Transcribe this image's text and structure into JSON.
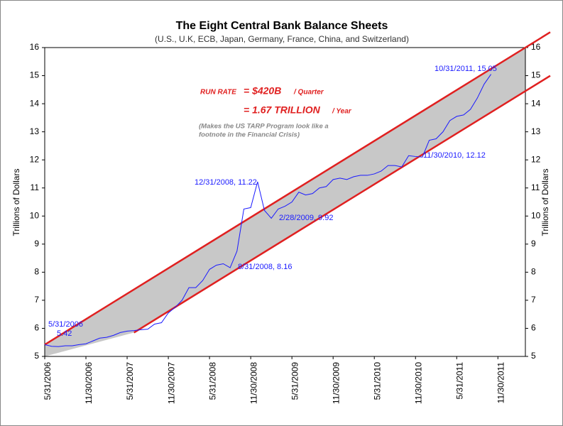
{
  "chart_data": {
    "type": "line",
    "title": "The Eight Central Bank Balance Sheets",
    "subtitle": "(U.S., U.K, ECB, Japan, Germany, France, China, and Switzerland)",
    "ylabel": "Trillions of Dollars",
    "y2label": "Trillions of Dollars",
    "ylim": [
      5,
      16
    ],
    "yticks": [
      5,
      6,
      7,
      8,
      9,
      10,
      11,
      12,
      13,
      14,
      15,
      16
    ],
    "y2lim": [
      5,
      16
    ],
    "y2ticks": [
      5,
      6,
      7,
      8,
      9,
      10,
      11,
      12,
      13,
      14,
      15,
      16
    ],
    "xlim": [
      "5/31/2006",
      "3/31/2012"
    ],
    "xticks": [
      "5/31/2006",
      "11/30/2006",
      "5/31/2007",
      "11/30/2007",
      "5/31/2008",
      "11/30/2008",
      "5/31/2009",
      "11/30/2009",
      "5/31/2010",
      "11/30/2010",
      "5/31/2011",
      "11/30/2011"
    ],
    "x": [
      "5/31/2006",
      "6/30/2006",
      "7/31/2006",
      "8/31/2006",
      "9/30/2006",
      "10/31/2006",
      "11/30/2006",
      "12/31/2006",
      "1/31/2007",
      "2/28/2007",
      "3/31/2007",
      "4/30/2007",
      "5/31/2007",
      "6/30/2007",
      "7/31/2007",
      "8/31/2007",
      "9/30/2007",
      "10/31/2007",
      "11/30/2007",
      "12/31/2007",
      "1/31/2008",
      "2/29/2008",
      "3/31/2008",
      "4/30/2008",
      "5/31/2008",
      "6/30/2008",
      "7/31/2008",
      "8/31/2008",
      "9/30/2008",
      "10/31/2008",
      "11/30/2008",
      "12/31/2008",
      "1/31/2009",
      "2/28/2009",
      "3/31/2009",
      "4/30/2009",
      "5/31/2009",
      "6/30/2009",
      "7/31/2009",
      "8/31/2009",
      "9/30/2009",
      "10/31/2009",
      "11/30/2009",
      "12/31/2009",
      "1/31/2010",
      "2/28/2010",
      "3/31/2010",
      "4/30/2010",
      "5/31/2010",
      "6/30/2010",
      "7/31/2010",
      "8/31/2010",
      "9/30/2010",
      "10/31/2010",
      "11/30/2010",
      "12/31/2010",
      "1/31/2011",
      "2/28/2011",
      "3/31/2011",
      "4/30/2011",
      "5/31/2011",
      "6/30/2011",
      "7/31/2011",
      "8/31/2011",
      "9/30/2011",
      "10/31/2011"
    ],
    "series": [
      {
        "name": "Balance Sheets",
        "color": "#1a1aff",
        "values": [
          5.42,
          5.36,
          5.35,
          5.38,
          5.38,
          5.42,
          5.45,
          5.55,
          5.65,
          5.68,
          5.75,
          5.85,
          5.9,
          5.92,
          5.95,
          5.97,
          6.15,
          6.2,
          6.55,
          6.75,
          7.0,
          7.45,
          7.45,
          7.7,
          8.1,
          8.25,
          8.3,
          8.16,
          8.75,
          10.25,
          10.3,
          11.22,
          10.2,
          9.92,
          10.25,
          10.35,
          10.5,
          10.85,
          10.75,
          10.8,
          11.0,
          11.05,
          11.3,
          11.35,
          11.3,
          11.4,
          11.45,
          11.45,
          11.5,
          11.6,
          11.8,
          11.8,
          11.75,
          12.15,
          12.12,
          12.1,
          12.7,
          12.75,
          13.0,
          13.4,
          13.55,
          13.6,
          13.8,
          14.2,
          14.7,
          15.05
        ]
      }
    ],
    "trend_lines": [
      {
        "color": "#e02020",
        "x": [
          "5/31/2006",
          "3/31/2012"
        ],
        "values": [
          5.42,
          16.0
        ]
      },
      {
        "color": "#e02020",
        "x": [
          "6/30/2007",
          "3/31/2012"
        ],
        "values": [
          5.85,
          14.45
        ]
      }
    ],
    "channel_color": "#c8c8c8",
    "point_labels": [
      "5/31/2006",
      "5.42",
      "12/31/2008, 11.22",
      "2/28/2009, 9.92",
      "8/31/2008, 8.16",
      "11/30/2010, 12.12",
      "10/31/2011, 15.05"
    ],
    "run_rate_label": "RUN RATE",
    "run_rate_value": "= $420B",
    "run_rate_unit": "/ Quarter",
    "annual_value": "= 1.67 TRILLION",
    "annual_unit": "/ Year",
    "note": [
      "(Makes the US TARP Program look like a",
      "footnote in the Financial Crisis)"
    ]
  }
}
